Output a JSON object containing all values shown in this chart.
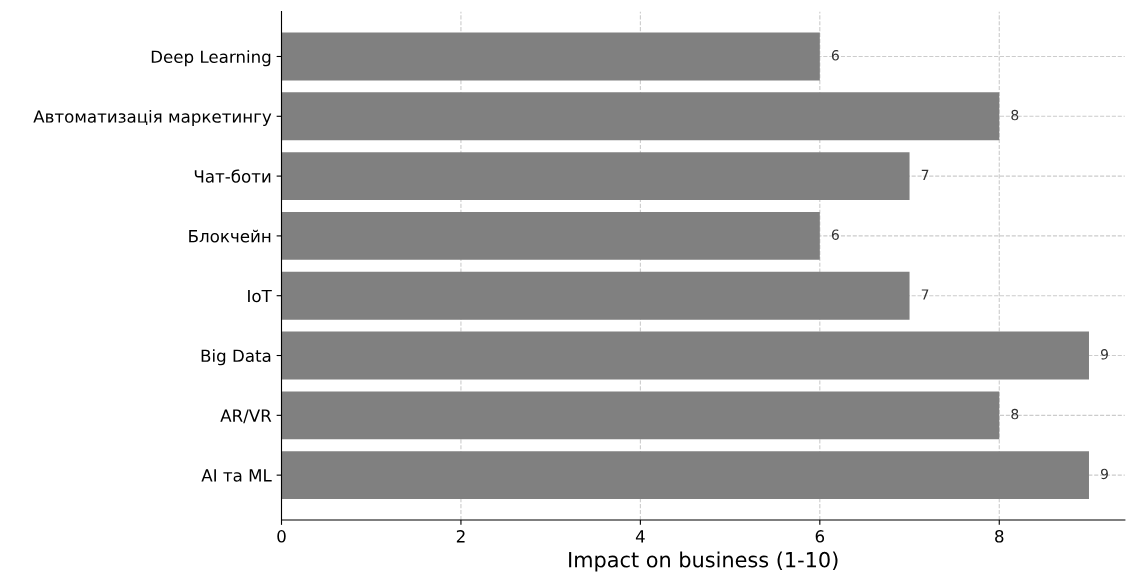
{
  "chart_data": {
    "type": "bar",
    "orientation": "horizontal",
    "categories": [
      "Deep Learning",
      "Автоматизація маркетингу",
      "Чат-боти",
      "Блокчейн",
      "IoT",
      "Big Data",
      "AR/VR",
      "AI та ML"
    ],
    "values": [
      6,
      8,
      7,
      6,
      7,
      9,
      8,
      9
    ],
    "color": "#808080",
    "data_labels": true,
    "xlabel": "Impact on business (1-10)",
    "xlim": [
      0,
      9.4
    ],
    "xticks": [
      0,
      2,
      4,
      6,
      8
    ],
    "grid": true,
    "legend": false
  }
}
